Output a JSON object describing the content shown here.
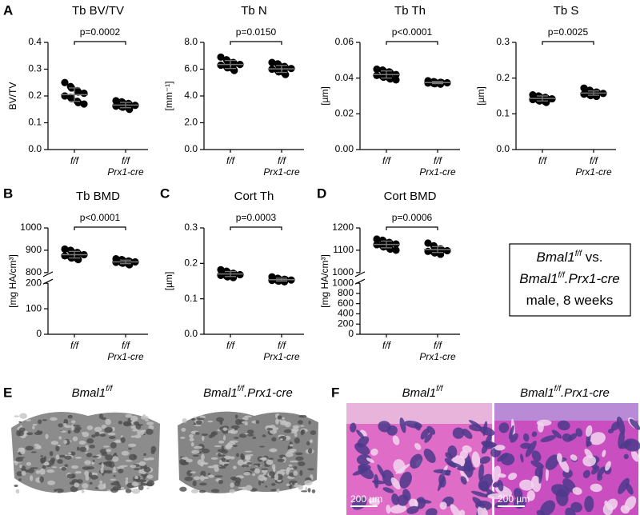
{
  "panel_labels": [
    "A",
    "B",
    "C",
    "D",
    "E",
    "F"
  ],
  "chart_data": [
    {
      "type": "dot",
      "title": "Tb BV/TV",
      "ylabel": "BV/TV",
      "categories": [
        [
          "f/f"
        ],
        [
          "f/f",
          "Prx1-cre"
        ]
      ],
      "groups": [
        {
          "values": [
            0.25,
            0.235,
            0.23,
            0.22,
            0.215,
            0.21,
            0.2,
            0.195,
            0.19,
            0.18,
            0.175,
            0.17
          ],
          "mean": 0.205,
          "sd": 0.025
        },
        {
          "values": [
            0.182,
            0.178,
            0.175,
            0.172,
            0.168,
            0.165,
            0.162,
            0.16,
            0.158,
            0.155,
            0.15
          ],
          "mean": 0.166,
          "sd": 0.01
        }
      ],
      "ylim": [
        0,
        0.4
      ],
      "yticks": [
        {
          "value": 0,
          "label": "0.0"
        },
        0.1,
        0.2,
        0.3,
        0.4
      ],
      "annotation": "p=0.0002",
      "color": "#000000"
    },
    {
      "type": "dot",
      "title": "Tb N",
      "ylabel": "[mm⁻¹]",
      "categories": [
        [
          "f/f"
        ],
        [
          "f/f",
          "Prx1-cre"
        ]
      ],
      "groups": [
        {
          "values": [
            6.9,
            6.7,
            6.6,
            6.5,
            6.4,
            6.35,
            6.3,
            6.2,
            6.1,
            6.0,
            5.9
          ],
          "mean": 6.35,
          "sd": 0.3
        },
        {
          "values": [
            6.5,
            6.4,
            6.3,
            6.2,
            6.1,
            6.05,
            6.0,
            5.9,
            5.8,
            5.7,
            5.6
          ],
          "mean": 6.02,
          "sd": 0.26
        }
      ],
      "ylim": [
        0,
        8
      ],
      "yticks": [
        {
          "value": 0,
          "label": "0.0"
        },
        {
          "value": 2,
          "label": "2.0"
        },
        {
          "value": 4,
          "label": "4.0"
        },
        {
          "value": 6,
          "label": "6.0"
        },
        {
          "value": 8,
          "label": "8.0"
        }
      ],
      "annotation": "p=0.0150",
      "color": "#000000"
    },
    {
      "type": "dot",
      "title": "Tb Th",
      "ylabel": "[µm]",
      "categories": [
        [
          "f/f"
        ],
        [
          "f/f",
          "Prx1-cre"
        ]
      ],
      "groups": [
        {
          "values": [
            0.045,
            0.0445,
            0.044,
            0.0435,
            0.043,
            0.042,
            0.0415,
            0.041,
            0.0405,
            0.04,
            0.0395,
            0.039
          ],
          "mean": 0.042,
          "sd": 0.002
        },
        {
          "values": [
            0.0385,
            0.038,
            0.0378,
            0.0376,
            0.0375,
            0.0374,
            0.0372,
            0.037,
            0.0368,
            0.0366
          ],
          "mean": 0.0375,
          "sd": 0.0006
        }
      ],
      "ylim": [
        0,
        0.06
      ],
      "yticks": [
        {
          "value": 0,
          "label": "0.00"
        },
        {
          "value": 0.02,
          "label": "0.02"
        },
        {
          "value": 0.04,
          "label": "0.04"
        },
        {
          "value": 0.06,
          "label": "0.06"
        }
      ],
      "annotation": "p<0.0001",
      "color": "#000000"
    },
    {
      "type": "dot",
      "title": "Tb S",
      "ylabel": "[µm]",
      "categories": [
        [
          "f/f"
        ],
        [
          "f/f",
          "Prx1-cre"
        ]
      ],
      "groups": [
        {
          "values": [
            0.153,
            0.15,
            0.148,
            0.146,
            0.144,
            0.142,
            0.14,
            0.138,
            0.136,
            0.134,
            0.132
          ],
          "mean": 0.143,
          "sd": 0.007
        },
        {
          "values": [
            0.172,
            0.166,
            0.163,
            0.161,
            0.159,
            0.157,
            0.155,
            0.153,
            0.151,
            0.149
          ],
          "mean": 0.158,
          "sd": 0.006
        }
      ],
      "ylim": [
        0,
        0.3
      ],
      "yticks": [
        {
          "value": 0,
          "label": "0.0"
        },
        0.1,
        0.2,
        0.3
      ],
      "annotation": "p=0.0025",
      "color": "#000000"
    },
    {
      "type": "dot",
      "title": "Tb BMD",
      "ylabel": "[mg HA/cm³]",
      "categories": [
        [
          "f/f"
        ],
        [
          "f/f",
          "Prx1-cre"
        ]
      ],
      "groups": [
        {
          "values": [
            905,
            900,
            895,
            890,
            885,
            880,
            875,
            870,
            865,
            862,
            858
          ],
          "mean": 880,
          "sd": 15
        },
        {
          "values": [
            862,
            858,
            855,
            852,
            850,
            848,
            846,
            844,
            842,
            838,
            835
          ],
          "mean": 848,
          "sd": 8
        }
      ],
      "segments": [
        {
          "ylim": [
            800,
            1000
          ],
          "yticks": [
            800,
            900,
            1000
          ]
        },
        {
          "ylim": [
            0,
            200
          ],
          "yticks": [
            0,
            100,
            200
          ]
        }
      ],
      "annotation": "p<0.0001",
      "color": "#000000"
    },
    {
      "type": "dot",
      "title": "Cort Th",
      "ylabel": "[µm]",
      "categories": [
        [
          "f/f"
        ],
        [
          "f/f",
          "Prx1-cre"
        ]
      ],
      "groups": [
        {
          "values": [
            0.182,
            0.178,
            0.175,
            0.172,
            0.17,
            0.168,
            0.166,
            0.164,
            0.162,
            0.16
          ],
          "mean": 0.17,
          "sd": 0.007
        },
        {
          "values": [
            0.162,
            0.158,
            0.156,
            0.155,
            0.154,
            0.153,
            0.152,
            0.151,
            0.15,
            0.148
          ],
          "mean": 0.154,
          "sd": 0.004
        }
      ],
      "ylim": [
        0,
        0.3
      ],
      "yticks": [
        {
          "value": 0,
          "label": "0.0"
        },
        0.1,
        0.2,
        0.3
      ],
      "annotation": "p=0.0003",
      "color": "#000000"
    },
    {
      "type": "dot",
      "title": "Cort BMD",
      "ylabel": "[mg HA/cm³]",
      "categories": [
        [
          "f/f"
        ],
        [
          "f/f",
          "Prx1-cre"
        ]
      ],
      "groups": [
        {
          "values": [
            1150,
            1145,
            1140,
            1135,
            1130,
            1128,
            1125,
            1120,
            1115,
            1110,
            1105,
            1100
          ],
          "mean": 1126,
          "sd": 15
        },
        {
          "values": [
            1132,
            1120,
            1112,
            1106,
            1102,
            1098,
            1095,
            1092,
            1088,
            1082
          ],
          "mean": 1103,
          "sd": 13
        }
      ],
      "segments": [
        {
          "ylim": [
            1000,
            1200
          ],
          "yticks": [
            1000,
            1100,
            1200
          ]
        },
        {
          "ylim": [
            0,
            1000
          ],
          "yticks": [
            0,
            200,
            400,
            600,
            800,
            1000
          ]
        }
      ],
      "annotation": "p=0.0006",
      "color": "#000000"
    }
  ],
  "key": {
    "lines": [
      [
        "Bmal1",
        "f/f",
        " vs."
      ],
      [
        "Bmal1",
        "f/f",
        ".Prx1-cre"
      ],
      [
        "male, 8 weeks"
      ]
    ]
  },
  "images": {
    "ct_captions": [
      [
        "Bmal1",
        "f/f"
      ],
      [
        "Bmal1",
        "f/f",
        ".Prx1-cre"
      ]
    ],
    "histology_captions": [
      [
        "Bmal1",
        "f/f"
      ],
      [
        "Bmal1",
        "f/f",
        ".Prx1-cre"
      ]
    ],
    "scale_bars": [
      "200 µm",
      "200 µm"
    ]
  }
}
